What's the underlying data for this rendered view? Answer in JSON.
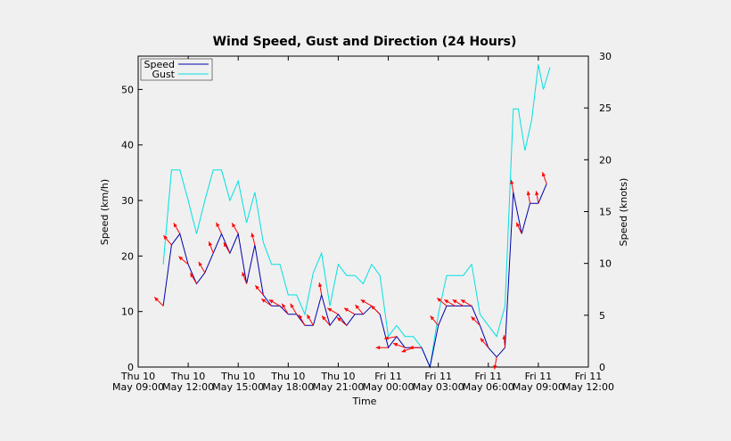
{
  "chart_data": {
    "type": "line",
    "title": "Wind Speed, Gust and Direction (24 Hours)",
    "xlabel": "Time",
    "ylabel_left": "Speed (km/h)",
    "ylabel_right": "Speed (knots)",
    "ylim_left": [
      0,
      56
    ],
    "ylim_right": [
      0,
      30
    ],
    "xlim_hours": [
      9,
      36
    ],
    "x_ticks": [
      {
        "h": 9,
        "line1": "Thu 10",
        "line2": "May 09:00"
      },
      {
        "h": 12,
        "line1": "Thu 10",
        "line2": "May 12:00"
      },
      {
        "h": 15,
        "line1": "Thu 10",
        "line2": "May 15:00"
      },
      {
        "h": 18,
        "line1": "Thu 10",
        "line2": "May 18:00"
      },
      {
        "h": 21,
        "line1": "Thu 10",
        "line2": "May 21:00"
      },
      {
        "h": 24,
        "line1": "Fri 11",
        "line2": "May 00:00"
      },
      {
        "h": 27,
        "line1": "Fri 11",
        "line2": "May 03:00"
      },
      {
        "h": 30,
        "line1": "Fri 11",
        "line2": "May 06:00"
      },
      {
        "h": 33,
        "line1": "Fri 11",
        "line2": "May 09:00"
      },
      {
        "h": 36,
        "line1": "Fri 11",
        "line2": "May 12:00"
      }
    ],
    "y_ticks_left": [
      "0",
      "10",
      "20",
      "30",
      "40",
      "50"
    ],
    "y_ticks_right": [
      "0",
      "5",
      "10",
      "15",
      "20",
      "25",
      "30"
    ],
    "legend": {
      "placement": "top-left",
      "entries": [
        "Speed",
        "Gust"
      ]
    },
    "colors": {
      "speed": "#0000aa",
      "gust": "#00e0e0",
      "direction": "#ff0000",
      "background": "#f0f0f0"
    },
    "series": [
      {
        "name": "Speed",
        "x": [
          10.5,
          11.0,
          11.5,
          12.0,
          12.5,
          13.0,
          13.5,
          14.0,
          14.5,
          15.0,
          15.5,
          16.0,
          16.5,
          17.0,
          17.5,
          18.0,
          18.5,
          19.0,
          19.5,
          20.0,
          20.5,
          21.0,
          21.5,
          22.0,
          22.5,
          23.0,
          23.5,
          24.0,
          24.5,
          25.0,
          25.5,
          26.0,
          26.5,
          27.0,
          27.5,
          28.0,
          28.5,
          29.0,
          29.5,
          30.0,
          30.5,
          31.0,
          31.5,
          32.0,
          32.5,
          33.0,
          33.5,
          34.0
        ],
        "values": [
          11.0,
          22.0,
          24.0,
          18.5,
          15.0,
          17.0,
          20.5,
          24.0,
          20.5,
          24.0,
          15.0,
          22.0,
          13.0,
          11.0,
          11.0,
          9.5,
          9.5,
          7.5,
          7.5,
          13.0,
          7.5,
          9.5,
          7.5,
          9.5,
          9.5,
          11.0,
          9.5,
          3.5,
          5.5,
          3.5,
          3.5,
          3.5,
          0.0,
          7.5,
          11.0,
          11.0,
          11.0,
          11.0,
          7.5,
          3.5,
          1.8,
          3.5,
          31.5,
          24.0,
          29.5,
          29.5,
          33.0,
          null
        ]
      },
      {
        "name": "Gust",
        "x": [
          10.5,
          11.0,
          11.5,
          12.0,
          12.5,
          13.0,
          13.5,
          14.0,
          14.5,
          15.0,
          15.5,
          16.0,
          16.5,
          17.0,
          17.5,
          18.0,
          18.5,
          19.0,
          19.5,
          20.0,
          20.5,
          21.0,
          21.5,
          22.0,
          22.5,
          23.0,
          23.5,
          24.0,
          24.5,
          25.0,
          25.5,
          26.0,
          26.5,
          27.0,
          27.5,
          28.0,
          28.5,
          29.0,
          29.5,
          30.0,
          30.5,
          31.0,
          31.5,
          31.8,
          32.2,
          32.6,
          33.0,
          33.3,
          33.7
        ],
        "values": [
          18.5,
          35.5,
          35.5,
          30.0,
          24.0,
          30.0,
          35.5,
          35.5,
          30.0,
          33.5,
          26.0,
          31.5,
          22.5,
          18.5,
          18.5,
          13.0,
          13.0,
          9.5,
          17.0,
          20.5,
          11.0,
          18.5,
          16.5,
          16.5,
          15.0,
          18.5,
          16.5,
          5.5,
          7.5,
          5.5,
          5.5,
          3.5,
          0.0,
          9.5,
          16.5,
          16.5,
          16.5,
          18.5,
          9.5,
          7.5,
          5.5,
          11.0,
          46.5,
          46.5,
          39.0,
          44.5,
          54.5,
          50.0,
          54.0
        ]
      }
    ],
    "direction_arrows": [
      [
        10.5,
        11.0,
        315
      ],
      [
        11.0,
        22.0,
        320
      ],
      [
        11.5,
        24.0,
        330
      ],
      [
        12.0,
        18.5,
        310
      ],
      [
        12.5,
        15.0,
        330
      ],
      [
        13.0,
        17.0,
        330
      ],
      [
        13.5,
        20.5,
        340
      ],
      [
        14.0,
        24.0,
        335
      ],
      [
        14.5,
        20.5,
        330
      ],
      [
        15.0,
        24.0,
        330
      ],
      [
        15.5,
        15.0,
        340
      ],
      [
        16.0,
        22.0,
        345
      ],
      [
        16.5,
        13.0,
        320
      ],
      [
        17.0,
        11.0,
        305
      ],
      [
        17.5,
        11.0,
        300
      ],
      [
        18.0,
        9.5,
        330
      ],
      [
        18.5,
        9.5,
        330
      ],
      [
        19.0,
        7.5,
        330
      ],
      [
        19.5,
        7.5,
        330
      ],
      [
        20.0,
        13.0,
        350
      ],
      [
        20.5,
        7.5,
        320
      ],
      [
        21.0,
        9.5,
        300
      ],
      [
        21.5,
        7.5,
        310
      ],
      [
        22.0,
        9.5,
        300
      ],
      [
        22.5,
        9.5,
        320
      ],
      [
        23.0,
        11.0,
        300
      ],
      [
        23.5,
        9.5,
        315
      ],
      [
        24.0,
        3.5,
        270
      ],
      [
        24.5,
        5.5,
        260
      ],
      [
        25.0,
        3.5,
        290
      ],
      [
        25.5,
        3.5,
        250
      ],
      [
        26.0,
        3.5,
        270
      ],
      [
        27.0,
        7.5,
        320
      ],
      [
        27.5,
        11.0,
        310
      ],
      [
        28.0,
        11.0,
        300
      ],
      [
        28.5,
        11.0,
        300
      ],
      [
        29.0,
        11.0,
        300
      ],
      [
        29.5,
        7.5,
        315
      ],
      [
        30.0,
        3.5,
        320
      ],
      [
        30.5,
        1.8,
        190
      ],
      [
        31.0,
        3.5,
        355
      ],
      [
        31.5,
        31.5,
        350
      ],
      [
        32.0,
        24.0,
        335
      ],
      [
        32.5,
        29.5,
        350
      ],
      [
        33.0,
        29.5,
        350
      ],
      [
        33.5,
        33.0,
        340
      ]
    ]
  }
}
